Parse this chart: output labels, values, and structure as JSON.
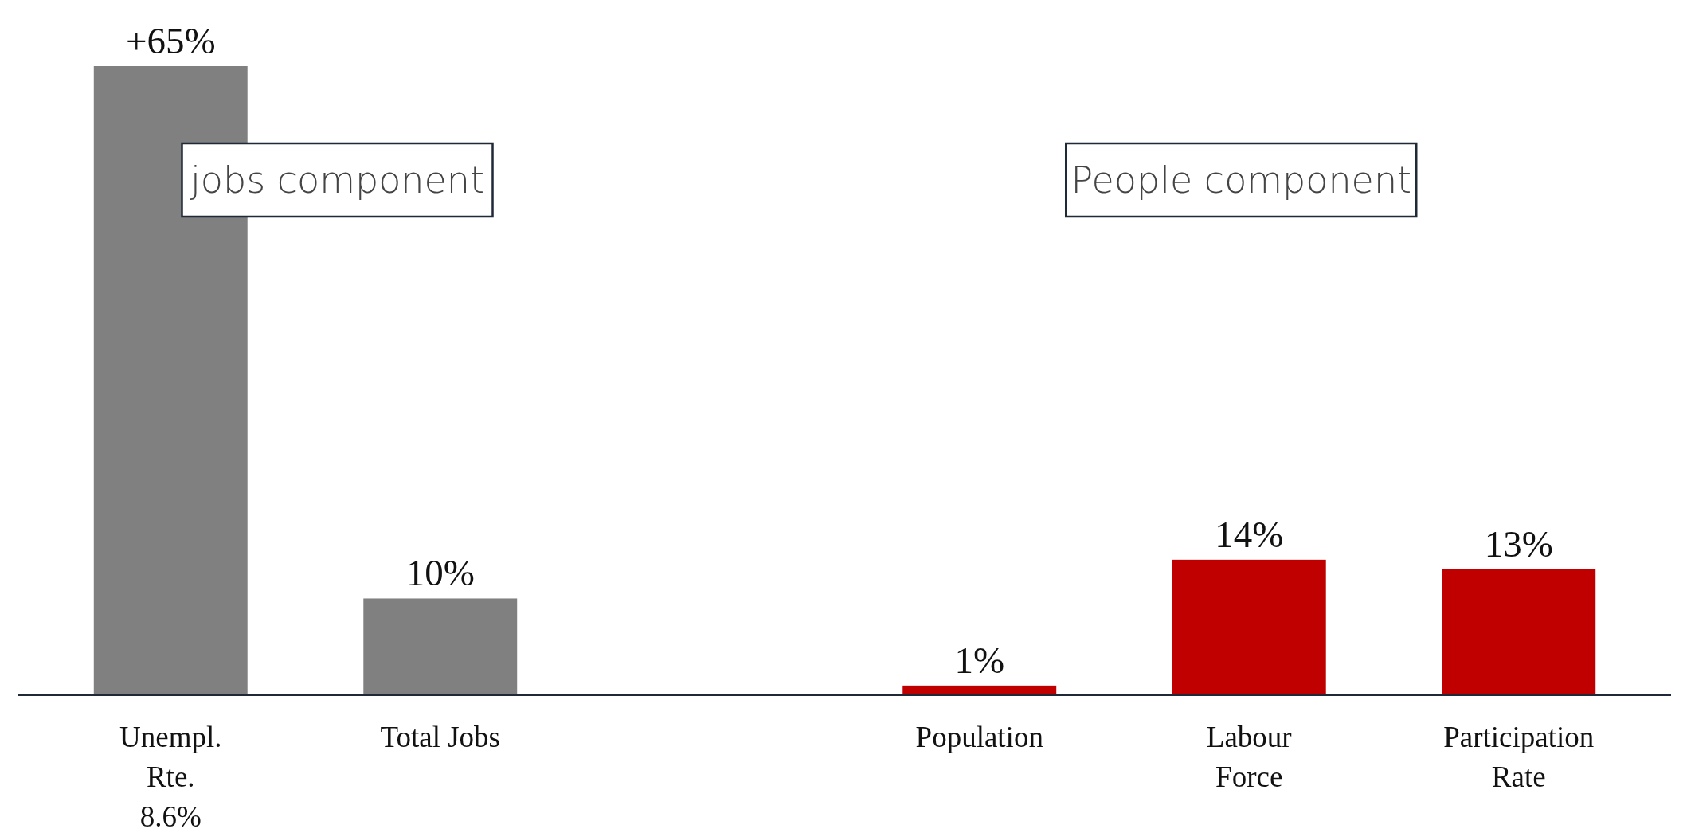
{
  "chart_data": {
    "type": "bar",
    "categories": [
      "Unempl.\nRte.\n8.6%",
      "Total Jobs",
      null,
      "Population",
      "Labour\nForce",
      "Participation\nRate"
    ],
    "values": [
      65,
      10,
      null,
      1,
      14,
      13
    ],
    "colors": [
      "#808080",
      "#808080",
      null,
      "#c00000",
      "#c00000",
      "#c00000"
    ],
    "value_labels": [
      "+65%",
      "10%",
      null,
      "1%",
      "14%",
      "13%"
    ],
    "ylim": [
      0,
      65
    ],
    "tick_labels": "x",
    "annotations": [
      "jobs component",
      "People component"
    ]
  }
}
